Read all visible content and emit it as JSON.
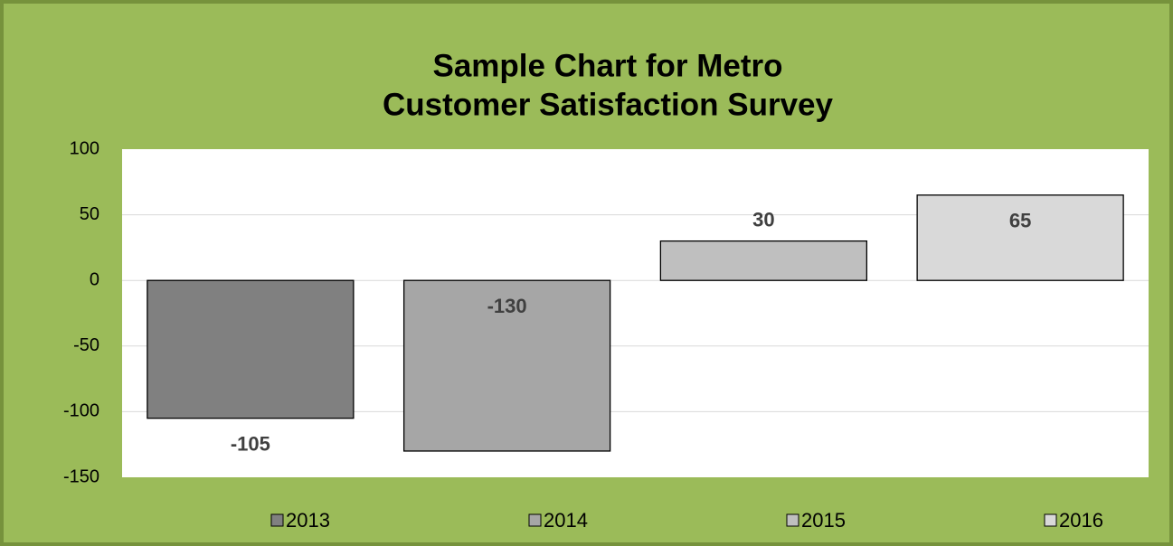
{
  "chart_data": {
    "type": "bar",
    "title": [
      "Sample Chart for Metro",
      "Customer Satisfaction Survey"
    ],
    "series": [
      {
        "name": "2013",
        "color": "#808080",
        "values": [
          -105
        ]
      },
      {
        "name": "2014",
        "color": "#a6a6a6",
        "values": [
          -130
        ]
      },
      {
        "name": "2015",
        "color": "#bfbfbf",
        "values": [
          30
        ]
      },
      {
        "name": "2016",
        "color": "#d9d9d9",
        "values": [
          65
        ]
      }
    ],
    "ylim": [
      -150,
      100
    ],
    "yticks": [
      -150,
      -100,
      -50,
      0,
      50,
      100
    ],
    "grid": true,
    "legend": "bottom"
  }
}
